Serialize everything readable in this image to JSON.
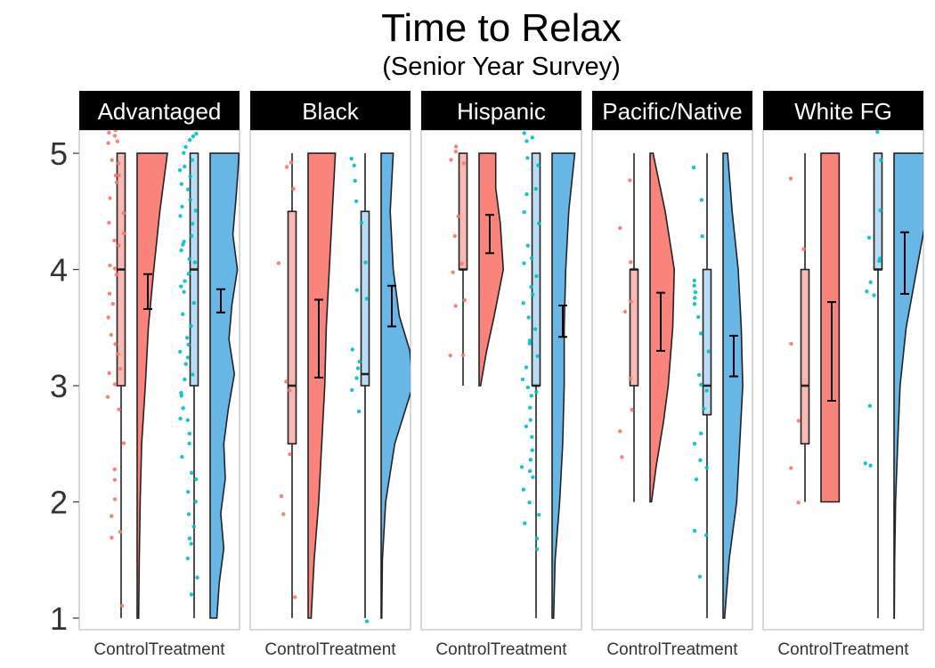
{
  "chart_data": {
    "type": "raincloud",
    "title": "Time to Relax",
    "subtitle": "(Senior Year Survey)",
    "xlabel": "",
    "ylabel": "",
    "ylim": [
      0.9,
      5.2
    ],
    "yticks": [
      1,
      2,
      3,
      4,
      5
    ],
    "grid": false,
    "legend": "none",
    "groups": [
      "Control",
      "Treatment"
    ],
    "colors": {
      "Control": "#F8766D",
      "Treatment": "#00BFC4",
      "Control_fill": "#F8847B",
      "Treatment_fill": "#67B6E6"
    },
    "panels": [
      {
        "name": "Advantaged",
        "series": [
          {
            "group": "Control",
            "box": {
              "min": 1,
              "q1": 3,
              "median": 4,
              "q3": 5,
              "max": 5
            },
            "mean": 3.8,
            "ci": [
              3.66,
              3.96
            ],
            "points": [
              5.2,
              5.17,
              5.15,
              5.1,
              5.1,
              4.95,
              4.9,
              4.8,
              4.8,
              4.75,
              4.6,
              4.5,
              4.4,
              4.3,
              4.25,
              4.2,
              4.05,
              4.0,
              3.95,
              3.8,
              3.7,
              3.6,
              3.45,
              3.35,
              3.27,
              3.15,
              3.1,
              3.0,
              2.9,
              2.8,
              2.5,
              2.28,
              2.2,
              2.02,
              1.87,
              1.73,
              1.7,
              1.12
            ],
            "density": [
              [
                1,
                0.05
              ],
              [
                1.5,
                0.07
              ],
              [
                2,
                0.1
              ],
              [
                2.5,
                0.15
              ],
              [
                3,
                0.27
              ],
              [
                3.5,
                0.37
              ],
              [
                4,
                0.55
              ],
              [
                4.5,
                0.75
              ],
              [
                5,
                1.0
              ]
            ]
          },
          {
            "group": "Treatment",
            "box": {
              "min": 1,
              "q1": 3,
              "median": 4,
              "q3": 5,
              "max": 5
            },
            "mean": 3.72,
            "ci": [
              3.63,
              3.83
            ],
            "points": [
              5.18,
              5.15,
              5.1,
              5.05,
              5.0,
              4.95,
              4.9,
              4.85,
              4.8,
              4.75,
              4.7,
              4.6,
              4.55,
              4.5,
              4.45,
              4.4,
              4.3,
              4.25,
              4.2,
              4.15,
              4.1,
              4.05,
              3.95,
              3.9,
              3.85,
              3.8,
              3.7,
              3.6,
              3.5,
              3.4,
              3.35,
              3.3,
              3.25,
              3.2,
              3.1,
              3.05,
              2.95,
              2.9,
              2.8,
              2.72,
              2.7,
              2.6,
              2.5,
              2.4,
              2.25,
              2.2,
              2.1,
              2.0,
              1.9,
              1.8,
              1.7,
              1.65,
              1.5,
              1.35,
              1.2
            ],
            "density": [
              [
                1,
                0.22
              ],
              [
                1.3,
                0.3
              ],
              [
                1.6,
                0.45
              ],
              [
                1.9,
                0.35
              ],
              [
                2.2,
                0.5
              ],
              [
                2.5,
                0.45
              ],
              [
                2.8,
                0.6
              ],
              [
                3.1,
                0.8
              ],
              [
                3.4,
                0.62
              ],
              [
                3.7,
                0.72
              ],
              [
                4.0,
                0.9
              ],
              [
                4.3,
                0.75
              ],
              [
                4.6,
                0.85
              ],
              [
                4.85,
                0.92
              ],
              [
                5,
                0.95
              ]
            ]
          }
        ]
      },
      {
        "name": "Black",
        "series": [
          {
            "group": "Control",
            "box": {
              "min": 1,
              "q1": 2.5,
              "median": 3,
              "q3": 4.5,
              "max": 5
            },
            "mean": 3.4,
            "ci": [
              3.07,
              3.74
            ],
            "points": [
              4.93,
              4.88,
              4.7,
              4.05,
              3.05,
              2.95,
              2.4,
              2.05,
              1.88,
              1.18
            ],
            "density": [
              [
                1,
                0.1
              ],
              [
                1.5,
                0.2
              ],
              [
                2,
                0.35
              ],
              [
                2.5,
                0.45
              ],
              [
                3,
                0.55
              ],
              [
                3.5,
                0.6
              ],
              [
                4,
                0.7
              ],
              [
                4.5,
                0.8
              ],
              [
                5,
                0.9
              ]
            ]
          },
          {
            "group": "Treatment",
            "box": {
              "min": 1,
              "q1": 3,
              "median": 3.1,
              "q3": 4.5,
              "max": 5
            },
            "mean": 3.68,
            "ci": [
              3.51,
              3.86
            ],
            "points": [
              4.95,
              4.9,
              4.77,
              4.6,
              4.4,
              4.05,
              3.82,
              3.75,
              3.3,
              3.2,
              3.15,
              3.05,
              2.97,
              2.78,
              0.96
            ],
            "density": [
              [
                1,
                0.02
              ],
              [
                1.5,
                0.04
              ],
              [
                2,
                0.15
              ],
              [
                2.5,
                0.45
              ],
              [
                3,
                1.05
              ],
              [
                3.3,
                0.95
              ],
              [
                3.6,
                0.6
              ],
              [
                4,
                0.4
              ],
              [
                4.5,
                0.3
              ],
              [
                5,
                0.4
              ]
            ]
          }
        ]
      },
      {
        "name": "Hispanic",
        "series": [
          {
            "group": "Control",
            "box": {
              "min": 3,
              "q1": 4,
              "median": 4,
              "q3": 5,
              "max": 5
            },
            "mean": 4.3,
            "ci": [
              4.14,
              4.47
            ],
            "points": [
              5.05,
              5.0,
              4.95,
              4.9,
              4.45,
              4.28,
              4.05,
              3.98,
              3.75,
              3.7,
              3.26,
              3.25
            ],
            "density": [
              [
                3,
                0.05
              ],
              [
                3.3,
                0.25
              ],
              [
                3.6,
                0.5
              ],
              [
                4,
                0.8
              ],
              [
                4.4,
                0.7
              ],
              [
                4.7,
                0.55
              ],
              [
                5,
                0.55
              ]
            ]
          },
          {
            "group": "Treatment",
            "box": {
              "min": 1,
              "q1": 3,
              "median": 3,
              "q3": 5,
              "max": 5
            },
            "mean": 3.55,
            "ci": [
              3.42,
              3.69
            ],
            "points": [
              5.18,
              5.15,
              5.1,
              4.95,
              4.9,
              4.7,
              4.65,
              4.5,
              4.4,
              4.2,
              4.1,
              4.05,
              3.95,
              3.85,
              3.78,
              3.7,
              3.6,
              3.5,
              3.4,
              3.35,
              3.25,
              3.15,
              3.05,
              3.0,
              2.95,
              2.9,
              2.8,
              2.7,
              2.65,
              2.55,
              2.45,
              2.35,
              2.3,
              2.25,
              2.2,
              2.1,
              2.0,
              1.9,
              1.8,
              1.7,
              1.6
            ],
            "density": [
              [
                1,
                0.05
              ],
              [
                1.5,
                0.1
              ],
              [
                2,
                0.25
              ],
              [
                2.5,
                0.35
              ],
              [
                3,
                0.4
              ],
              [
                3.5,
                0.4
              ],
              [
                4,
                0.45
              ],
              [
                4.5,
                0.55
              ],
              [
                5,
                0.75
              ]
            ]
          }
        ]
      },
      {
        "name": "Pacific/Native",
        "series": [
          {
            "group": "Control",
            "box": {
              "min": 2,
              "q1": 3,
              "median": 4,
              "q3": 4,
              "max": 5
            },
            "mean": 3.55,
            "ci": [
              3.3,
              3.8
            ],
            "points": [
              4.78,
              4.35,
              4.05,
              3.72,
              3.65,
              3.05,
              2.8,
              2.6,
              2.38
            ],
            "density": [
              [
                2,
                0.05
              ],
              [
                2.3,
                0.2
              ],
              [
                2.7,
                0.45
              ],
              [
                3,
                0.6
              ],
              [
                3.5,
                0.75
              ],
              [
                4,
                0.8
              ],
              [
                4.5,
                0.5
              ],
              [
                5,
                0.1
              ]
            ]
          },
          {
            "group": "Treatment",
            "box": {
              "min": 1,
              "q1": 2.75,
              "median": 3,
              "q3": 4,
              "max": 5
            },
            "mean": 3.25,
            "ci": [
              3.08,
              3.43
            ],
            "points": [
              4.87,
              4.6,
              4.3,
              3.9,
              3.85,
              3.8,
              3.75,
              3.7,
              3.6,
              3.45,
              3.3,
              3.1,
              3.0,
              2.95,
              2.8,
              2.6,
              2.5,
              2.35,
              2.3,
              2.2,
              1.75,
              1.7,
              1.35
            ],
            "density": [
              [
                1,
                0.05
              ],
              [
                1.5,
                0.2
              ],
              [
                2,
                0.45
              ],
              [
                2.5,
                0.55
              ],
              [
                3,
                0.65
              ],
              [
                3.5,
                0.6
              ],
              [
                4,
                0.5
              ],
              [
                4.5,
                0.3
              ],
              [
                5,
                0.15
              ]
            ]
          }
        ]
      },
      {
        "name": "White FG",
        "series": [
          {
            "group": "Control",
            "box": {
              "min": 2,
              "q1": 2.5,
              "median": 3,
              "q3": 4,
              "max": 5
            },
            "mean": 3.3,
            "ci": [
              2.87,
              3.72
            ],
            "points": [
              4.78,
              4.17,
              3.36,
              2.7,
              2.3,
              2.0
            ],
            "density": [
              [
                2,
                0.6
              ],
              [
                2.5,
                0.6
              ],
              [
                3,
                0.6
              ],
              [
                3.5,
                0.6
              ],
              [
                4,
                0.6
              ],
              [
                4.5,
                0.6
              ],
              [
                5,
                0.6
              ]
            ]
          },
          {
            "group": "Treatment",
            "box": {
              "min": 1,
              "q1": 4,
              "median": 4,
              "q3": 5,
              "max": 5
            },
            "mean": 4.05,
            "ci": [
              3.79,
              4.32
            ],
            "points": [
              5.17,
              4.95,
              4.5,
              4.27,
              4.1,
              4.07,
              3.9,
              3.82,
              3.78,
              2.83,
              2.33,
              2.3
            ],
            "density": [
              [
                1,
                0.01
              ],
              [
                1.5,
                0.02
              ],
              [
                2,
                0.05
              ],
              [
                2.5,
                0.12
              ],
              [
                3,
                0.2
              ],
              [
                3.5,
                0.4
              ],
              [
                4,
                0.75
              ],
              [
                4.5,
                1.1
              ],
              [
                5,
                1.25
              ]
            ]
          }
        ]
      }
    ]
  }
}
